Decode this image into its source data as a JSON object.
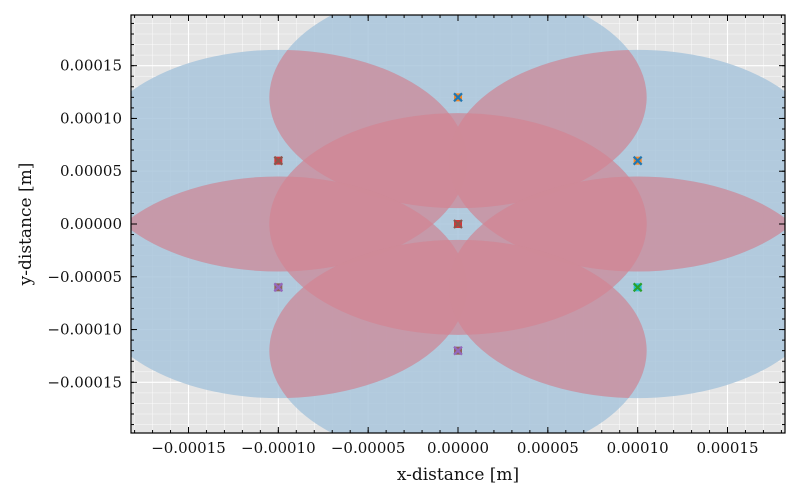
{
  "chart_data": {
    "type": "scatter",
    "title": "",
    "xlabel": "x-distance [m]",
    "ylabel": "y-distance [m]",
    "xlim": [
      -0.000182,
      0.000182
    ],
    "ylim": [
      -0.000198,
      0.000198
    ],
    "grid": true,
    "x_ticks": [
      "−0.00015",
      "−0.00010",
      "−0.00005",
      "0.00000",
      "0.00005",
      "0.00010",
      "0.00015"
    ],
    "x_tick_values": [
      -0.00015,
      -0.0001,
      -5e-05,
      0.0,
      5e-05,
      0.0001,
      0.00015
    ],
    "y_ticks": [
      "0.00015",
      "0.00010",
      "0.00005",
      "0.00000",
      "−0.00005",
      "−0.00010",
      "−0.00015"
    ],
    "y_tick_values": [
      0.00015,
      0.0001,
      5e-05,
      0.0,
      -5e-05,
      -0.0001,
      -0.00015
    ],
    "coverage_radius": 0.000105,
    "colors": {
      "background": "#e5e5e5",
      "grid": "#ffffff",
      "coverage": "#a9c6dc",
      "overlap": "#cf8a98",
      "gap": "#6aa68a"
    },
    "points": [
      {
        "x": 0.0,
        "y": 0.00012,
        "marker_colors": [
          "#ff7f0e",
          "#1f77b4"
        ]
      },
      {
        "x": -0.0001,
        "y": 6e-05,
        "marker_colors": [
          "#d62728",
          "#8c564b"
        ]
      },
      {
        "x": 0.0001,
        "y": 6e-05,
        "marker_colors": [
          "#ff7f0e",
          "#1f77b4"
        ]
      },
      {
        "x": 0.0,
        "y": 0.0,
        "marker_colors": [
          "#d62728",
          "#8c564b"
        ]
      },
      {
        "x": -0.0001,
        "y": -6e-05,
        "marker_colors": [
          "#8c564b",
          "#9467bd"
        ]
      },
      {
        "x": 0.0001,
        "y": -6e-05,
        "marker_colors": [
          "#17becf",
          "#2ca02c"
        ]
      },
      {
        "x": 0.0,
        "y": -0.00012,
        "marker_colors": [
          "#8c564b",
          "#9467bd"
        ]
      }
    ]
  }
}
